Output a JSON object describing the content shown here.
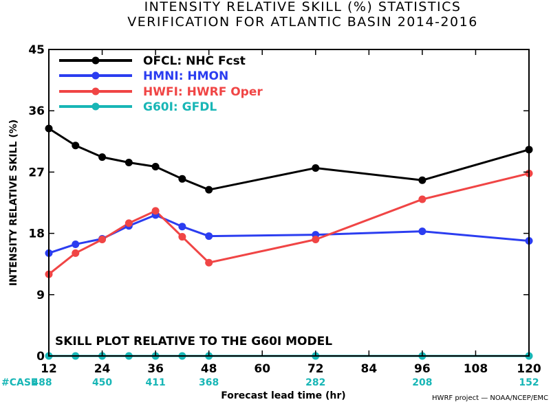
{
  "chart_data": {
    "type": "line",
    "title": "INTENSITY RELATIVE SKILL (%) STATISTICS",
    "subtitle": "VERIFICATION FOR ATLANTIC BASIN 2014-2016",
    "xlabel": "Forecast lead time (hr)",
    "ylabel": "INTENSITY RELATIVE SKILL (%)",
    "xlim": [
      12,
      120
    ],
    "ylim": [
      0,
      45
    ],
    "xticks": [
      "12",
      "24",
      "36",
      "48",
      "60",
      "72",
      "84",
      "96",
      "108",
      "120"
    ],
    "yticks": [
      "0",
      "9",
      "18",
      "27",
      "36",
      "45"
    ],
    "case_label": "#CASE",
    "case_x": [
      12,
      24,
      36,
      48,
      72,
      96,
      120
    ],
    "cases": [
      "488",
      "450",
      "411",
      "368",
      "282",
      "208",
      "152"
    ],
    "note": "SKILL PLOT RELATIVE TO THE G60I MODEL",
    "credit": "HWRF project — NOAA/NCEP/EMC",
    "legend_position": "top-left",
    "series": [
      {
        "name": "OFCL: NHC Fcst",
        "color": "#000000",
        "x": [
          12,
          18,
          24,
          30,
          36,
          42,
          48,
          72,
          96,
          120
        ],
        "values": [
          33.4,
          30.9,
          29.2,
          28.4,
          27.8,
          26.0,
          24.4,
          27.6,
          25.8,
          30.3
        ]
      },
      {
        "name": "HMNI: HMON",
        "color": "#2b3df0",
        "x": [
          12,
          18,
          24,
          30,
          36,
          42,
          48,
          72,
          96,
          120
        ],
        "values": [
          15.1,
          16.4,
          17.2,
          19.1,
          20.7,
          19.0,
          17.6,
          17.8,
          18.3,
          16.9
        ]
      },
      {
        "name": "HWFI: HWRF Oper",
        "color": "#f04545",
        "x": [
          12,
          18,
          24,
          30,
          36,
          42,
          48,
          72,
          96,
          120
        ],
        "values": [
          12.0,
          15.1,
          17.1,
          19.5,
          21.3,
          17.5,
          13.7,
          17.1,
          23.0,
          26.8
        ]
      },
      {
        "name": "G60I: GFDL",
        "color": "#18b6b6",
        "x": [
          12,
          18,
          24,
          30,
          36,
          42,
          48,
          72,
          96,
          120
        ],
        "values": [
          0,
          0,
          0,
          0,
          0,
          0,
          0,
          0,
          0,
          0
        ]
      }
    ]
  }
}
